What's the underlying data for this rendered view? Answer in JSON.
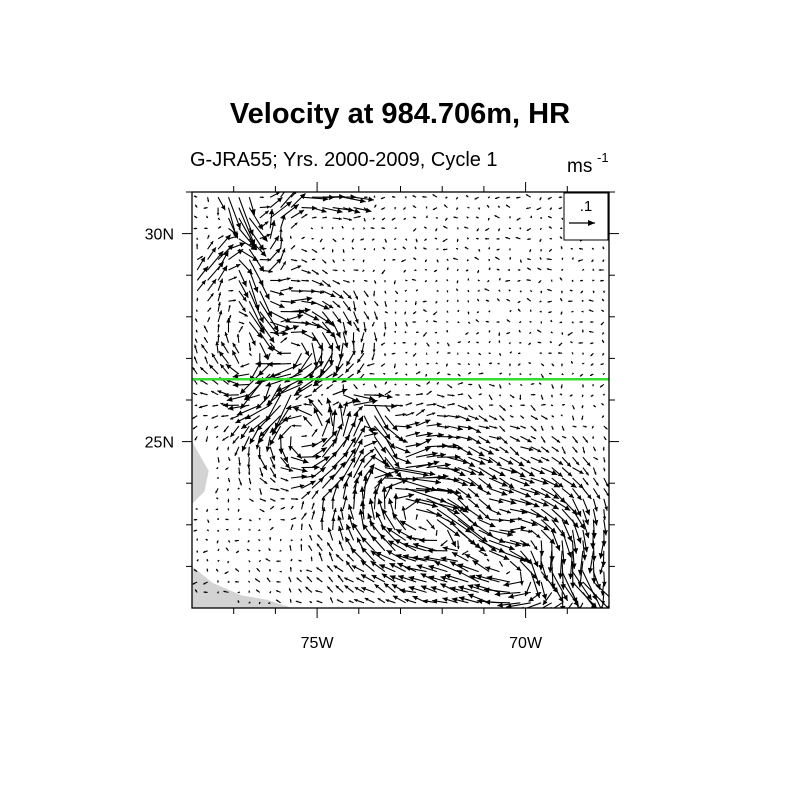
{
  "title": "Velocity at 984.706m, HR",
  "subtitle": "G-JRA55; Yrs. 2000-2009, Cycle 1",
  "units": {
    "base": "ms",
    "exponent": "-1"
  },
  "colors": {
    "vectors": "#000000",
    "land": "#d3d3d3",
    "section_line": "#33dd33",
    "frame": "#000000"
  },
  "chart_data": {
    "type": "vector-field",
    "xlim": [
      -78,
      -68
    ],
    "ylim": [
      21,
      31
    ],
    "x_tick_labels": [
      {
        "lon": -75,
        "label": "75W"
      },
      {
        "lon": -70,
        "label": "70W"
      }
    ],
    "y_tick_labels": [
      {
        "lat": 30,
        "label": "30N"
      },
      {
        "lat": 25,
        "label": "25N"
      }
    ],
    "x_minor_ticks": [
      -77,
      -76,
      -74,
      -73,
      -72,
      -71,
      -69
    ],
    "y_minor_ticks": [
      22,
      23,
      24,
      26,
      27,
      28,
      29,
      31
    ],
    "reference_vector": {
      "value": 0.1,
      "label": ".1",
      "placement": "top-right"
    },
    "section_line": {
      "lat": 26.5,
      "lon_range": [
        -78,
        -68
      ]
    },
    "land": [
      {
        "name": "bottom-left landmass",
        "polygon": [
          [
            -78,
            22.0
          ],
          [
            -77.5,
            21.6
          ],
          [
            -76.8,
            21.3
          ],
          [
            -76.2,
            21.2
          ],
          [
            -75.6,
            21.0
          ],
          [
            -78,
            21.0
          ]
        ]
      },
      {
        "name": "left-edge islands",
        "polygon": [
          [
            -78,
            25.0
          ],
          [
            -77.6,
            24.3
          ],
          [
            -77.7,
            23.8
          ],
          [
            -78,
            23.5
          ]
        ]
      }
    ],
    "streams": [
      {
        "name": "western boundary current",
        "speed": 0.16,
        "path": [
          [
            -77.0,
            30.9
          ],
          [
            -76.7,
            30.2
          ],
          [
            -76.6,
            29.3
          ],
          [
            -76.5,
            28.3
          ],
          [
            -76.4,
            27.3
          ],
          [
            -76.2,
            26.5
          ],
          [
            -75.6,
            26.1
          ],
          [
            -74.6,
            26.1
          ],
          [
            -73.8,
            25.9
          ],
          [
            -73.5,
            25.2
          ],
          [
            -73.4,
            24.4
          ],
          [
            -72.8,
            23.7
          ],
          [
            -71.8,
            23.1
          ],
          [
            -70.8,
            22.5
          ],
          [
            -69.8,
            21.9
          ],
          [
            -68.6,
            21.6
          ]
        ]
      },
      {
        "name": "northern recirculation",
        "speed": 0.1,
        "path": [
          [
            -76.3,
            29.2
          ],
          [
            -76.2,
            30.3
          ],
          [
            -75.5,
            30.9
          ],
          [
            -74.3,
            30.8
          ]
        ]
      },
      {
        "name": "coastal inflow",
        "speed": 0.08,
        "path": [
          [
            -77.7,
            28.9
          ],
          [
            -77.2,
            29.5
          ],
          [
            -76.8,
            29.9
          ]
        ]
      }
    ],
    "eddies": [
      {
        "name": "northern cyclonic eddy",
        "center": [
          -75.6,
          27.1
        ],
        "radius": 0.75,
        "speed": 0.11,
        "sense": "cw"
      },
      {
        "name": "central anticyclonic eddy",
        "center": [
          -75.3,
          25.4
        ],
        "radius": 0.75,
        "speed": 0.09,
        "sense": "ccw"
      },
      {
        "name": "southern eddy",
        "center": [
          -72.4,
          23.5
        ],
        "radius": 1.0,
        "speed": 0.08,
        "sense": "cw"
      },
      {
        "name": "southeastern eddy",
        "center": [
          -69.9,
          22.5
        ],
        "radius": 0.9,
        "speed": 0.09,
        "sense": "cw"
      }
    ],
    "background": {
      "u": -0.008,
      "v": 0.0,
      "noise": 0.012
    },
    "grid_spacing_deg": 0.25
  }
}
